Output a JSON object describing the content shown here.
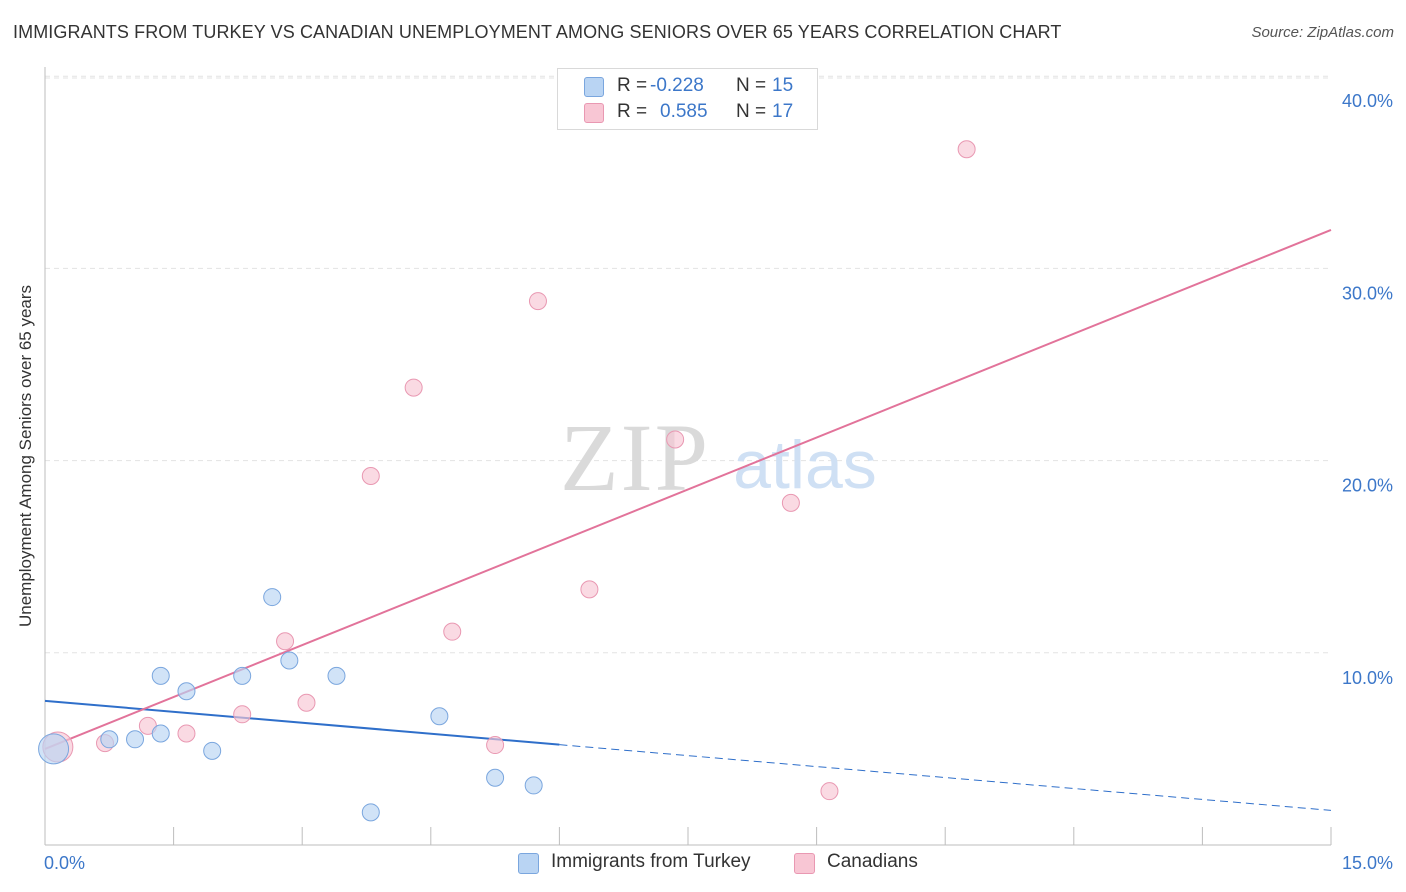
{
  "title": "IMMIGRANTS FROM TURKEY VS CANADIAN UNEMPLOYMENT AMONG SENIORS OVER 65 YEARS CORRELATION CHART",
  "source": "Source: ZipAtlas.com",
  "watermark": {
    "zip": "ZIP",
    "atlas": "atlas"
  },
  "colors": {
    "blue_fill": "#b9d4f3",
    "blue_stroke": "#7aa6de",
    "blue_line": "#2f6fca",
    "pink_fill": "#f8c6d4",
    "pink_stroke": "#e998b2",
    "pink_line": "#e2739a",
    "tick_label": "#3c77c9",
    "grid": "#e3e3e3"
  },
  "legend": {
    "r_label": "R =",
    "n_label": "N =",
    "rows": [
      {
        "r": "-0.228",
        "n": "15",
        "series": "blue"
      },
      {
        "r": "0.585",
        "n": "17",
        "series": "pink"
      }
    ]
  },
  "chart_data": {
    "type": "scatter",
    "title": "IMMIGRANTS FROM TURKEY VS CANADIAN UNEMPLOYMENT AMONG SENIORS OVER 65 YEARS CORRELATION CHART",
    "xlabel": "",
    "ylabel": "Unemployment Among Seniors over 65 years",
    "xlim": [
      0,
      15
    ],
    "ylim": [
      0,
      41
    ],
    "x_ticks": [
      0,
      15
    ],
    "x_tick_labels": [
      "0.0%",
      "15.0%"
    ],
    "y_ticks": [
      10,
      20,
      30,
      40
    ],
    "y_tick_labels": [
      "10.0%",
      "20.0%",
      "30.0%",
      "40.0%"
    ],
    "grid": true,
    "legend_position": "top-center",
    "series": [
      {
        "name": "Immigrants from Turkey",
        "color": "blue",
        "r": -0.228,
        "n": 15,
        "points": [
          {
            "x": 0.1,
            "y": 5.0,
            "size": "large"
          },
          {
            "x": 0.75,
            "y": 5.5
          },
          {
            "x": 1.05,
            "y": 5.5
          },
          {
            "x": 1.35,
            "y": 5.8
          },
          {
            "x": 1.35,
            "y": 8.8
          },
          {
            "x": 1.65,
            "y": 8.0
          },
          {
            "x": 1.95,
            "y": 4.9
          },
          {
            "x": 2.3,
            "y": 8.8
          },
          {
            "x": 2.65,
            "y": 12.9
          },
          {
            "x": 2.85,
            "y": 9.6
          },
          {
            "x": 3.4,
            "y": 8.8
          },
          {
            "x": 3.8,
            "y": 1.7
          },
          {
            "x": 4.6,
            "y": 6.7
          },
          {
            "x": 5.25,
            "y": 3.5
          },
          {
            "x": 5.7,
            "y": 3.1
          }
        ],
        "trend": {
          "x0": 0,
          "y0": 7.5,
          "x1": 15,
          "y1": 1.8,
          "solid_until_x": 6.0
        }
      },
      {
        "name": "Canadians",
        "color": "pink",
        "r": 0.585,
        "n": 17,
        "points": [
          {
            "x": 0.15,
            "y": 5.1,
            "size": "large"
          },
          {
            "x": 0.7,
            "y": 5.3
          },
          {
            "x": 1.2,
            "y": 6.2
          },
          {
            "x": 1.65,
            "y": 5.8
          },
          {
            "x": 2.3,
            "y": 6.8
          },
          {
            "x": 2.8,
            "y": 10.6
          },
          {
            "x": 3.05,
            "y": 7.4
          },
          {
            "x": 3.8,
            "y": 19.2
          },
          {
            "x": 4.3,
            "y": 23.8
          },
          {
            "x": 4.75,
            "y": 11.1
          },
          {
            "x": 5.25,
            "y": 5.2
          },
          {
            "x": 5.75,
            "y": 28.3
          },
          {
            "x": 6.35,
            "y": 13.3
          },
          {
            "x": 7.35,
            "y": 21.1
          },
          {
            "x": 8.7,
            "y": 17.8
          },
          {
            "x": 9.15,
            "y": 2.8
          },
          {
            "x": 10.75,
            "y": 36.2
          }
        ],
        "trend": {
          "x0": 0,
          "y0": 5.0,
          "x1": 15,
          "y1": 32.0
        }
      }
    ]
  },
  "bottom_legend": [
    {
      "label": "Immigrants from Turkey",
      "series": "blue"
    },
    {
      "label": "Canadians",
      "series": "pink"
    }
  ]
}
